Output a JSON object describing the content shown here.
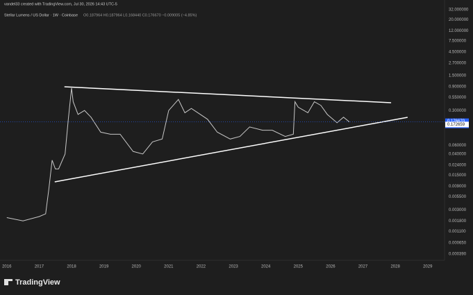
{
  "chart_data": {
    "type": "line",
    "attribution": "vandel33 created with TradingView.com, Jul 30, 2026 14:43 UTC-5",
    "title": "Stellar Lumens / US Dollar · 1W · Coinbase",
    "ohlc_text": "O0.187964 H0.187964 L0.168440 C0.176670 −0.009005 (−4.85%)",
    "brand": "TradingView",
    "log_scale": true,
    "grid": false,
    "x": [
      2016.0,
      2016.5,
      2017.0,
      2017.2,
      2017.3,
      2017.4,
      2017.5,
      2017.6,
      2017.8,
      2017.9,
      2018.0,
      2018.05,
      2018.2,
      2018.4,
      2018.6,
      2018.9,
      2019.2,
      2019.5,
      2019.9,
      2020.2,
      2020.5,
      2020.8,
      2021.0,
      2021.3,
      2021.5,
      2021.7,
      2021.9,
      2022.2,
      2022.5,
      2022.9,
      2023.2,
      2023.5,
      2023.9,
      2024.2,
      2024.6,
      2024.85,
      2024.9,
      2025.0,
      2025.3,
      2025.5,
      2025.7,
      2025.9,
      2026.2,
      2026.4,
      2026.58
    ],
    "series": [
      {
        "color": "#c8c8c8",
        "values": [
          0.0021,
          0.0018,
          0.0022,
          0.0025,
          0.008,
          0.03,
          0.02,
          0.02,
          0.04,
          0.2,
          0.85,
          0.45,
          0.25,
          0.3,
          0.22,
          0.11,
          0.1,
          0.1,
          0.045,
          0.04,
          0.07,
          0.08,
          0.3,
          0.5,
          0.27,
          0.33,
          0.27,
          0.2,
          0.11,
          0.08,
          0.09,
          0.14,
          0.12,
          0.12,
          0.09,
          0.1,
          0.45,
          0.35,
          0.27,
          0.45,
          0.38,
          0.25,
          0.17,
          0.22,
          0.17667
        ]
      }
    ],
    "trendlines": [
      {
        "color": "#ffffff",
        "x": [
          2017.78,
          2027.87
        ],
        "y": [
          0.9,
          0.43
        ]
      },
      {
        "color": "#ffffff",
        "x": [
          2017.48,
          2028.38
        ],
        "y": [
          0.011,
          0.219
        ]
      }
    ],
    "xlim": [
      2015.79,
      2029.52
    ],
    "xticks": [
      2016,
      2017,
      2018,
      2019,
      2020,
      2021,
      2022,
      2023,
      2024,
      2025,
      2026,
      2027,
      2028,
      2029
    ],
    "ylim": [
      0.00029,
      50.2
    ],
    "yticks": [
      {
        "value": 32,
        "label": "32.000000"
      },
      {
        "value": 20,
        "label": "20.000000"
      },
      {
        "value": 12,
        "label": "12.000000"
      },
      {
        "value": 7.5,
        "label": "7.500000"
      },
      {
        "value": 4.5,
        "label": "4.500000"
      },
      {
        "value": 2.7,
        "label": "2.700000"
      },
      {
        "value": 1.5,
        "label": "1.500000"
      },
      {
        "value": 0.9,
        "label": "0.900000"
      },
      {
        "value": 0.55,
        "label": "0.550000"
      },
      {
        "value": 0.3,
        "label": "0.300000"
      },
      {
        "value": 0.06,
        "label": "0.060000"
      },
      {
        "value": 0.04,
        "label": "0.040000"
      },
      {
        "value": 0.024,
        "label": "0.024000"
      },
      {
        "value": 0.015,
        "label": "0.015000"
      },
      {
        "value": 0.009,
        "label": "0.009000"
      },
      {
        "value": 0.0055,
        "label": "0.005500"
      },
      {
        "value": 0.003,
        "label": "0.003000"
      },
      {
        "value": 0.0018,
        "label": "0.001800"
      },
      {
        "value": 0.0011,
        "label": "0.001100"
      },
      {
        "value": 0.00065,
        "label": "0.000650"
      },
      {
        "value": 0.00039,
        "label": "0.000390"
      }
    ],
    "price_labels": [
      {
        "value": 0.17667,
        "label": "0.176670",
        "note": "3d 5h",
        "color": "#2962ff"
      },
      {
        "value": 0.172659,
        "label": "0.172659",
        "color": "#ffffff"
      }
    ]
  }
}
